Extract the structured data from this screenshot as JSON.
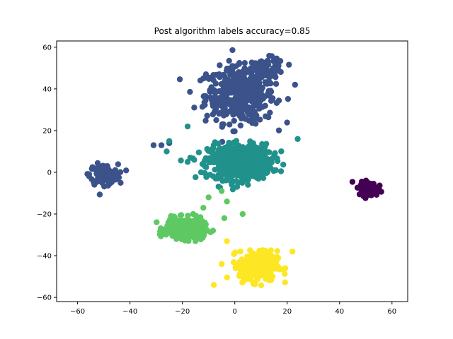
{
  "chart_data": {
    "type": "scatter",
    "title": "Post algorithm labels accuracy=0.85",
    "xlabel": "",
    "ylabel": "",
    "xlim": [
      -68,
      66
    ],
    "ylim": [
      -62,
      63
    ],
    "x_ticks": [
      -60,
      -40,
      -20,
      0,
      20,
      40,
      60
    ],
    "y_ticks": [
      -60,
      -40,
      -20,
      0,
      20,
      40,
      60
    ],
    "x_tick_labels": [
      "−60",
      "−40",
      "−20",
      "0",
      "20",
      "40",
      "60"
    ],
    "y_tick_labels": [
      "−60",
      "−40",
      "−20",
      "0",
      "20",
      "40",
      "60"
    ],
    "grid": false,
    "legend": "none",
    "clusters": [
      {
        "color": "#3b528b",
        "center": [
          2,
          37
        ],
        "spread": [
          11,
          11
        ],
        "count": 420
      },
      {
        "color": "#3b528b",
        "center": [
          12,
          50
        ],
        "spread": [
          6,
          4
        ],
        "count": 80
      },
      {
        "color": "#3b528b",
        "center": [
          -50,
          -1
        ],
        "spread": [
          4.5,
          4
        ],
        "count": 150
      },
      {
        "color": "#21918c",
        "center": [
          2,
          5
        ],
        "spread": [
          10,
          7
        ],
        "count": 520
      },
      {
        "color": "#5ec962",
        "center": [
          -19,
          -27
        ],
        "spread": [
          6,
          4
        ],
        "count": 320
      },
      {
        "color": "#fde725",
        "center": [
          9,
          -45
        ],
        "spread": [
          6,
          6
        ],
        "count": 300
      },
      {
        "color": "#440154",
        "center": [
          51,
          -8
        ],
        "spread": [
          3,
          2.7
        ],
        "count": 150
      }
    ],
    "outliers": [
      {
        "color": "#3b528b",
        "points": [
          [
            -31,
            13
          ],
          [
            -28,
            13
          ],
          [
            -25,
            14
          ],
          [
            23,
            42
          ],
          [
            -11,
            47
          ],
          [
            -12,
            45
          ]
        ]
      },
      {
        "color": "#21918c",
        "points": [
          [
            -25,
            15
          ],
          [
            -18,
            22
          ],
          [
            -26,
            10
          ],
          [
            -17,
            7
          ],
          [
            24,
            16
          ],
          [
            -18,
            5
          ]
        ]
      },
      {
        "color": "#5ec962",
        "points": [
          [
            -10,
            -12
          ],
          [
            -5,
            -9
          ],
          [
            -12,
            -17
          ],
          [
            3,
            -20
          ],
          [
            -3,
            -14
          ],
          [
            -4,
            -22
          ]
        ]
      },
      {
        "color": "#fde725",
        "points": [
          [
            -8,
            -54
          ],
          [
            -5,
            -44
          ],
          [
            -3,
            -33
          ],
          [
            22,
            -38
          ]
        ]
      }
    ]
  }
}
